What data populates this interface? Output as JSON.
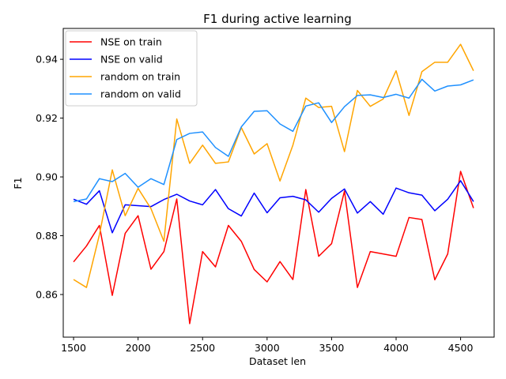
{
  "chart_data": {
    "type": "line",
    "title": "F1 during active learning",
    "xlabel": "Dataset len",
    "ylabel": "F1",
    "xlim": [
      1420,
      4760
    ],
    "ylim": [
      0.8455,
      0.9505
    ],
    "xticks": [
      1500,
      2000,
      2500,
      3000,
      3500,
      4000,
      4500
    ],
    "yticks": [
      0.86,
      0.88,
      0.9,
      0.92,
      0.94
    ],
    "grid": false,
    "legend_position": "top-left",
    "x": [
      1500,
      1600,
      1700,
      1800,
      1900,
      2000,
      2100,
      2200,
      2300,
      2400,
      2500,
      2600,
      2700,
      2800,
      2900,
      3000,
      3100,
      3200,
      3300,
      3400,
      3500,
      3600,
      3700,
      3800,
      3900,
      4000,
      4100,
      4200,
      4300,
      4400,
      4500,
      4600
    ],
    "series": [
      {
        "name": "NSE on train",
        "color": "#ff0000",
        "values": [
          0.8711,
          0.8765,
          0.8835,
          0.8597,
          0.8808,
          0.8868,
          0.8686,
          0.8746,
          0.8925,
          0.8501,
          0.8746,
          0.8694,
          0.8835,
          0.8781,
          0.8685,
          0.8643,
          0.8712,
          0.8651,
          0.8957,
          0.873,
          0.8773,
          0.8952,
          0.8624,
          0.8746,
          0.8738,
          0.873,
          0.8862,
          0.8855,
          0.865,
          0.8738,
          0.9019,
          0.8894
        ]
      },
      {
        "name": "NSE on valid",
        "color": "#0000ff",
        "values": [
          0.8924,
          0.8907,
          0.8953,
          0.881,
          0.8905,
          0.8902,
          0.8899,
          0.8923,
          0.8941,
          0.8918,
          0.8905,
          0.8957,
          0.8892,
          0.8867,
          0.8945,
          0.8878,
          0.8929,
          0.8934,
          0.8922,
          0.888,
          0.8927,
          0.8959,
          0.8877,
          0.8916,
          0.8873,
          0.8962,
          0.8946,
          0.8938,
          0.8885,
          0.8924,
          0.8987,
          0.8916
        ]
      },
      {
        "name": "random on train",
        "color": "#ffa500",
        "values": [
          0.8651,
          0.8624,
          0.8803,
          0.9024,
          0.8868,
          0.8961,
          0.8892,
          0.8781,
          0.9197,
          0.9046,
          0.9108,
          0.9046,
          0.9051,
          0.9168,
          0.9078,
          0.9113,
          0.8986,
          0.9108,
          0.9268,
          0.9236,
          0.924,
          0.9086,
          0.9294,
          0.924,
          0.9265,
          0.9361,
          0.9209,
          0.9358,
          0.939,
          0.939,
          0.9451,
          0.9361
        ]
      },
      {
        "name": "random on valid",
        "color": "#1e90ff",
        "values": [
          0.8916,
          0.8925,
          0.8994,
          0.8984,
          0.9012,
          0.8965,
          0.8994,
          0.8974,
          0.9127,
          0.9148,
          0.9153,
          0.91,
          0.907,
          0.917,
          0.9223,
          0.9225,
          0.918,
          0.9155,
          0.9241,
          0.9252,
          0.9185,
          0.9239,
          0.9277,
          0.9279,
          0.927,
          0.9281,
          0.9268,
          0.9332,
          0.9292,
          0.9309,
          0.9313,
          0.933
        ]
      }
    ]
  }
}
